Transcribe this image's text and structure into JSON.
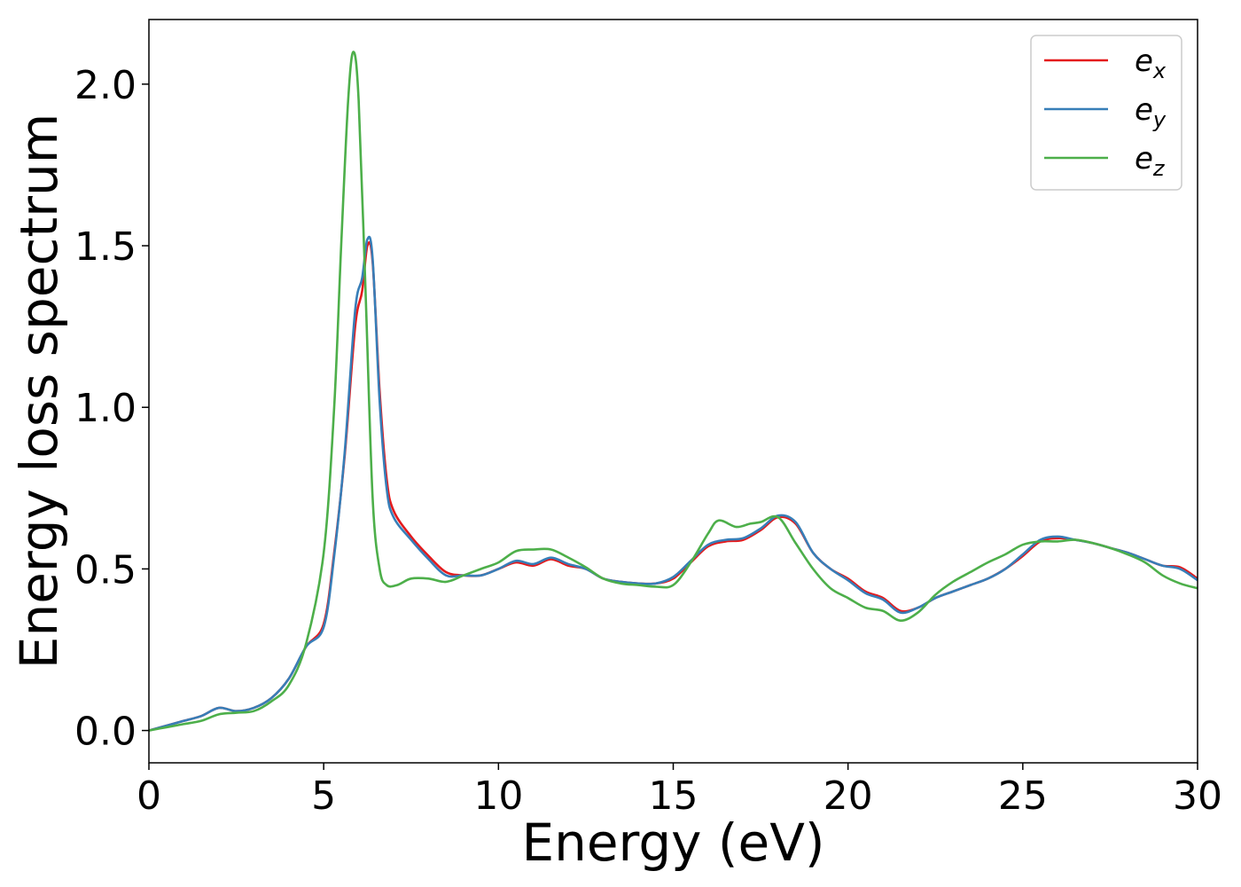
{
  "chart_data": {
    "type": "line",
    "title": "",
    "xlabel": "Energy (eV)",
    "ylabel": "Energy loss spectrum",
    "xlim": [
      0,
      30
    ],
    "ylim": [
      -0.1,
      2.2
    ],
    "xticks": [
      0,
      5,
      10,
      15,
      20,
      25,
      30
    ],
    "xtick_labels": [
      "0",
      "5",
      "10",
      "15",
      "20",
      "25",
      "30"
    ],
    "yticks": [
      0.0,
      0.5,
      1.0,
      1.5,
      2.0
    ],
    "ytick_labels": [
      "0.0",
      "0.5",
      "1.0",
      "1.5",
      "2.0"
    ],
    "grid": false,
    "legend_position": "top-right",
    "series": [
      {
        "name": "e_x",
        "label_main": "e",
        "label_sub": "x",
        "color": "#e41a1c",
        "x": [
          0,
          0.5,
          1,
          1.5,
          2,
          2.5,
          3,
          3.5,
          4,
          4.5,
          5,
          5.3,
          5.6,
          5.9,
          6.1,
          6.25,
          6.4,
          6.6,
          6.8,
          7,
          7.5,
          8,
          8.5,
          9,
          9.5,
          10,
          10.5,
          11,
          11.5,
          12,
          12.5,
          13,
          13.5,
          14,
          14.5,
          15,
          15.5,
          16,
          16.5,
          17,
          17.5,
          18,
          18.5,
          19,
          19.5,
          20,
          20.5,
          21,
          21.5,
          22,
          22.5,
          23,
          23.5,
          24,
          24.5,
          25,
          25.5,
          26,
          26.5,
          27,
          27.5,
          28,
          28.5,
          29,
          29.5,
          30
        ],
        "y": [
          0.0,
          0.015,
          0.03,
          0.045,
          0.07,
          0.06,
          0.07,
          0.1,
          0.16,
          0.26,
          0.33,
          0.55,
          0.85,
          1.25,
          1.36,
          1.5,
          1.45,
          1.05,
          0.78,
          0.68,
          0.6,
          0.54,
          0.49,
          0.48,
          0.48,
          0.5,
          0.52,
          0.51,
          0.53,
          0.51,
          0.5,
          0.47,
          0.46,
          0.455,
          0.455,
          0.47,
          0.52,
          0.57,
          0.585,
          0.59,
          0.62,
          0.66,
          0.64,
          0.55,
          0.5,
          0.47,
          0.43,
          0.41,
          0.37,
          0.38,
          0.41,
          0.43,
          0.45,
          0.47,
          0.5,
          0.54,
          0.585,
          0.595,
          0.59,
          0.58,
          0.565,
          0.55,
          0.53,
          0.51,
          0.505,
          0.47
        ]
      },
      {
        "name": "e_y",
        "label_main": "e",
        "label_sub": "y",
        "color": "#377eb8",
        "x": [
          0,
          0.5,
          1,
          1.5,
          2,
          2.5,
          3,
          3.5,
          4,
          4.5,
          5,
          5.3,
          5.6,
          5.9,
          6.1,
          6.25,
          6.4,
          6.6,
          6.8,
          7,
          7.5,
          8,
          8.5,
          9,
          9.5,
          10,
          10.5,
          11,
          11.5,
          12,
          12.5,
          13,
          13.5,
          14,
          14.5,
          15,
          15.5,
          16,
          16.5,
          17,
          17.5,
          18,
          18.5,
          19,
          19.5,
          20,
          20.5,
          21,
          21.5,
          22,
          22.5,
          23,
          23.5,
          24,
          24.5,
          25,
          25.5,
          26,
          26.5,
          27,
          27.5,
          28,
          28.5,
          29,
          29.5,
          30
        ],
        "y": [
          0.0,
          0.015,
          0.03,
          0.045,
          0.07,
          0.06,
          0.07,
          0.1,
          0.16,
          0.26,
          0.32,
          0.54,
          0.86,
          1.3,
          1.4,
          1.52,
          1.46,
          1.02,
          0.75,
          0.66,
          0.59,
          0.53,
          0.48,
          0.48,
          0.48,
          0.5,
          0.525,
          0.515,
          0.535,
          0.515,
          0.5,
          0.47,
          0.46,
          0.455,
          0.455,
          0.475,
          0.525,
          0.575,
          0.59,
          0.595,
          0.625,
          0.665,
          0.645,
          0.55,
          0.5,
          0.465,
          0.425,
          0.405,
          0.365,
          0.38,
          0.41,
          0.43,
          0.45,
          0.47,
          0.5,
          0.545,
          0.59,
          0.6,
          0.59,
          0.58,
          0.565,
          0.55,
          0.53,
          0.51,
          0.5,
          0.465
        ]
      },
      {
        "name": "e_z",
        "label_main": "e",
        "label_sub": "z",
        "color": "#4daf4a",
        "x": [
          0,
          0.5,
          1,
          1.5,
          2,
          2.5,
          3,
          3.5,
          4,
          4.5,
          5,
          5.3,
          5.5,
          5.7,
          5.85,
          6.0,
          6.2,
          6.4,
          6.6,
          6.8,
          7.1,
          7.5,
          8,
          8.5,
          9,
          9.5,
          10,
          10.5,
          11,
          11.5,
          12,
          12.5,
          13,
          13.5,
          14,
          14.5,
          15,
          15.5,
          16,
          16.3,
          16.8,
          17.2,
          17.5,
          18,
          18.5,
          19,
          19.5,
          20,
          20.5,
          21,
          21.5,
          22,
          22.5,
          23,
          23.5,
          24,
          24.5,
          25,
          25.5,
          26,
          26.5,
          27,
          27.5,
          28,
          28.5,
          29,
          29.5,
          30
        ],
        "y": [
          0.0,
          0.01,
          0.02,
          0.03,
          0.05,
          0.055,
          0.06,
          0.09,
          0.14,
          0.27,
          0.55,
          1.0,
          1.5,
          1.95,
          2.1,
          1.95,
          1.35,
          0.72,
          0.5,
          0.45,
          0.45,
          0.47,
          0.47,
          0.46,
          0.48,
          0.5,
          0.52,
          0.555,
          0.56,
          0.56,
          0.535,
          0.505,
          0.47,
          0.455,
          0.45,
          0.445,
          0.45,
          0.52,
          0.61,
          0.65,
          0.63,
          0.64,
          0.645,
          0.66,
          0.58,
          0.5,
          0.44,
          0.41,
          0.38,
          0.37,
          0.34,
          0.365,
          0.42,
          0.46,
          0.49,
          0.52,
          0.545,
          0.575,
          0.585,
          0.585,
          0.59,
          0.58,
          0.565,
          0.545,
          0.52,
          0.48,
          0.455,
          0.44
        ]
      }
    ]
  }
}
